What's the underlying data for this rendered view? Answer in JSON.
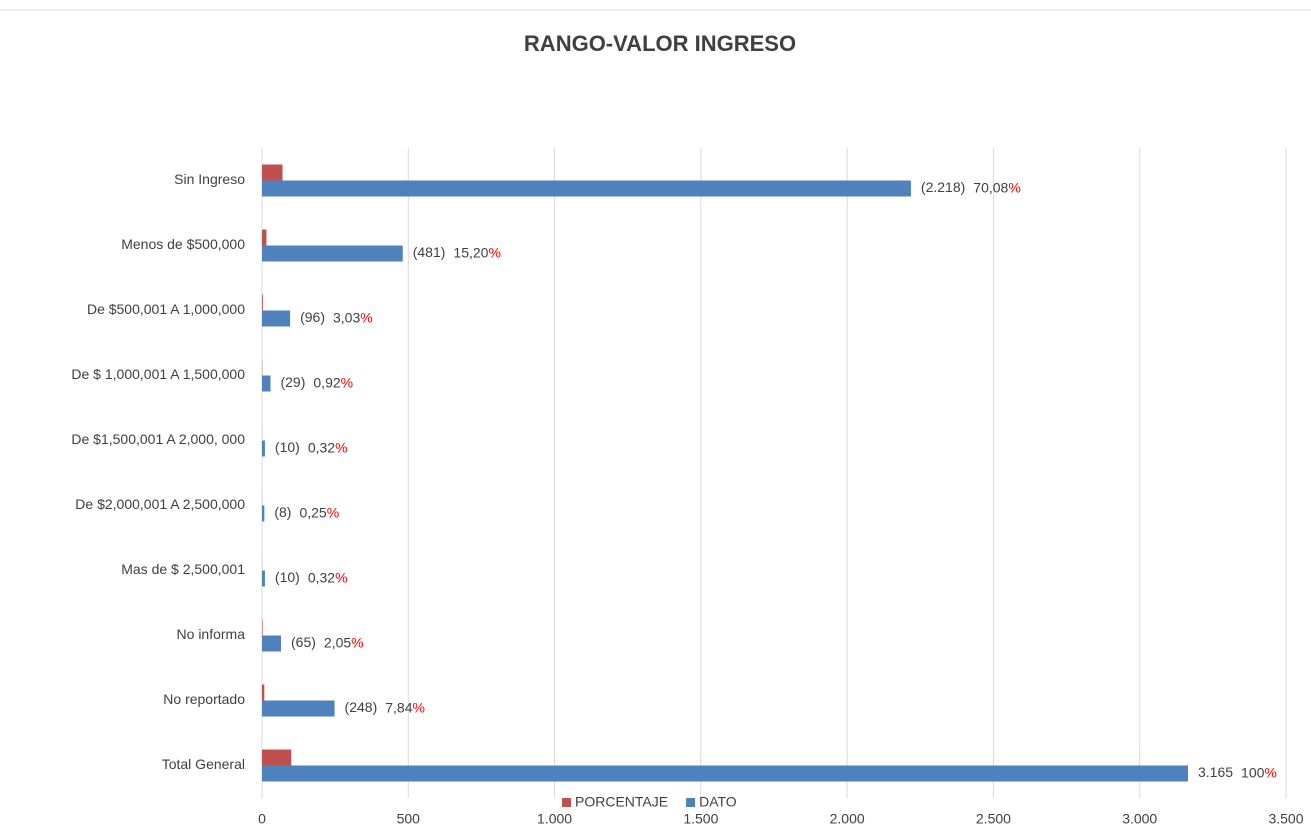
{
  "chart_data": {
    "type": "hbar",
    "title": "RANGO-VALOR INGRESO",
    "categories": [
      "Sin Ingreso",
      "Menos de $500,000",
      "De $500,001 A 1,000,000",
      "De $ 1,000,001 A 1,500,000",
      "De $1,500,001 A 2,000, 000",
      "De $2,000,001 A 2,500,000",
      "Mas de $ 2,500,001",
      "No informa",
      "No reportado",
      "Total General"
    ],
    "series": [
      {
        "name": "PORCENTAJE",
        "color": "#c0504d",
        "values": [
          70.08,
          15.2,
          3.03,
          0.92,
          0.32,
          0.25,
          0.32,
          2.05,
          7.84,
          100
        ],
        "value_labels": [
          "70,08%",
          "15,20%",
          "3,03%",
          "0,92%",
          "0,32%",
          "0,25%",
          "0,32%",
          "2,05%",
          "7,84%",
          "100%"
        ]
      },
      {
        "name": "DATO",
        "color": "#4f81bd",
        "values": [
          2218,
          481,
          96,
          29,
          10,
          8,
          10,
          65,
          248,
          3165
        ],
        "value_labels": [
          "(2.218)",
          "(481)",
          "(96)",
          "(29)",
          "(10)",
          "(8)",
          "(10)",
          "(65)",
          "(248)",
          "3.165"
        ]
      }
    ],
    "xlim": [
      0,
      3500
    ],
    "xticks": [
      0,
      500,
      {
        "value": 1000,
        "label": "1.000"
      },
      {
        "value": 1500,
        "label": "1.500"
      },
      {
        "value": 2000,
        "label": "2.000"
      },
      {
        "value": 2500,
        "label": "2.500"
      },
      {
        "value": 3000,
        "label": "3.000"
      },
      {
        "value": 3500,
        "label": "3.500"
      }
    ],
    "grid": true,
    "legend": "bottom"
  }
}
